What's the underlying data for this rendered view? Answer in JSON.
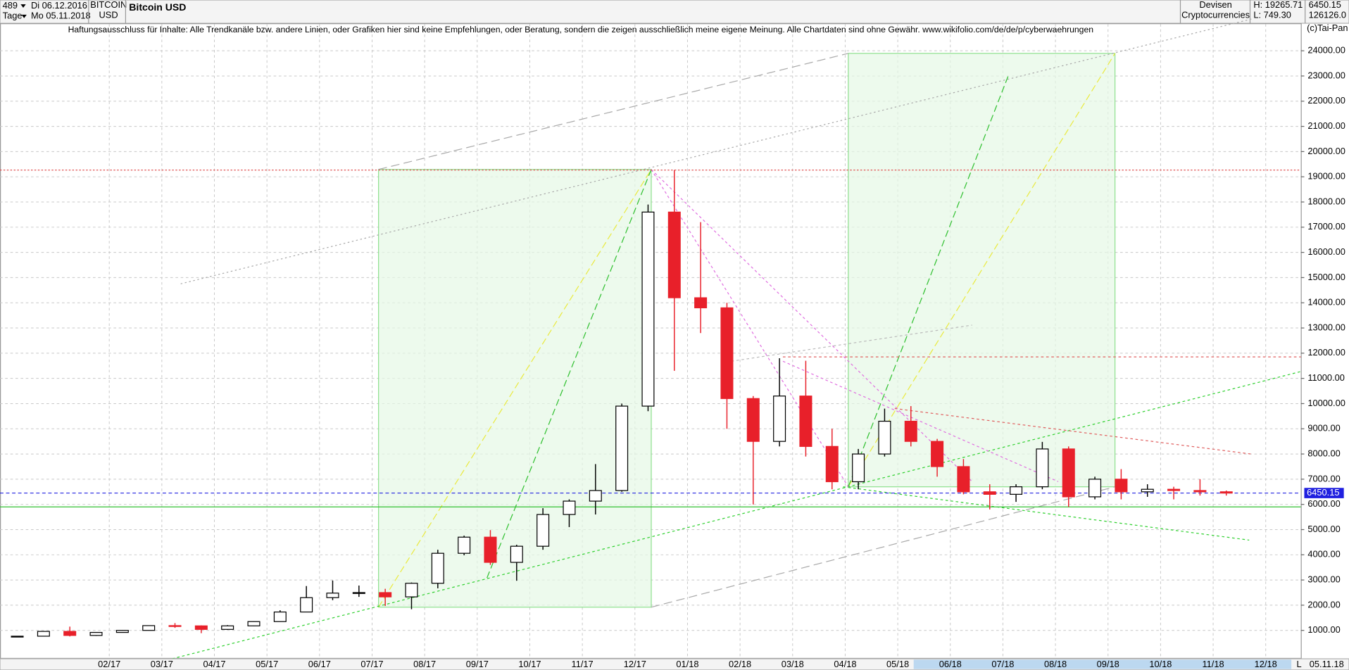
{
  "header": {
    "count": "489",
    "count_unit": "Tage",
    "start_date": "Di 06.12.2016",
    "end_date": "Mo 05.11.2018",
    "symbol": "BITCOIN",
    "currency": "USD",
    "name": "Bitcoin USD",
    "group": "Devisen",
    "subgroup": "Cryptocurrencies",
    "high": "H: 19265.71",
    "low": "L: 749.30",
    "last": "6450.15",
    "volume": "126126.0",
    "copyright": "(c)Tai-Pan",
    "disclaimer": "Haftungsausschluss für Inhalte: Alle Trendkanäle bzw. andere Linien, oder Grafiken hier sind keine Empfehlungen, oder Beratung, sondern die zeigen ausschließlich meine eigene Meinung. Alle Chartdaten sind ohne Gewähr.  www.wikifolio.com/de/de/p/cyberwaehrungen",
    "scale_mode": "L",
    "cursor_date": "05.11.18"
  },
  "chart_data": {
    "type": "candlestick",
    "categories": [
      null,
      null,
      null,
      null,
      "02/17",
      null,
      "03/17",
      null,
      "04/17",
      null,
      "05/17",
      null,
      "06/17",
      null,
      "07/17",
      null,
      "08/17",
      null,
      "09/17",
      null,
      "10/17",
      null,
      "11/17",
      null,
      "12/17",
      null,
      "01/18",
      null,
      "02/18",
      null,
      "03/18",
      null,
      "04/18",
      null,
      "05/18",
      null,
      "06/18",
      null,
      "07/18",
      null,
      "08/18",
      null,
      "09/18",
      null,
      "10/18",
      null,
      "11/18",
      null,
      "12/18"
    ],
    "open": [
      750,
      770,
      960,
      800,
      920,
      1000,
      1190,
      1180,
      1040,
      1180,
      1350,
      1730,
      2300,
      2480,
      2500,
      2330,
      2870,
      4060,
      4700,
      3700,
      4340,
      5600,
      6130,
      6550,
      9900,
      17600,
      14200,
      13800,
      10200,
      8500,
      10300,
      8300,
      6900,
      8000,
      9300,
      8500,
      7500,
      6500,
      6400,
      6700,
      8200,
      6300,
      7000,
      6500,
      6600,
      6550,
      6500,
      null,
      null
    ],
    "high": [
      780,
      970,
      1150,
      930,
      1010,
      1200,
      1290,
      1200,
      1210,
      1360,
      1800,
      2760,
      2980,
      2780,
      2650,
      2900,
      4200,
      4760,
      4980,
      4400,
      5850,
      6200,
      7600,
      10000,
      17900,
      19266,
      17200,
      14000,
      10300,
      11800,
      11700,
      9000,
      8200,
      9800,
      9900,
      8600,
      7800,
      6800,
      6800,
      8480,
      8300,
      7100,
      7400,
      6800,
      6700,
      7000,
      6550,
      null,
      null
    ],
    "low": [
      740,
      760,
      760,
      780,
      910,
      990,
      1100,
      890,
      1020,
      1170,
      1340,
      1720,
      2200,
      2330,
      1970,
      1840,
      2670,
      3980,
      3600,
      2970,
      4200,
      5100,
      5600,
      6500,
      9700,
      11300,
      12800,
      9000,
      6000,
      8300,
      7900,
      6600,
      6600,
      7900,
      8300,
      7100,
      6400,
      5800,
      6100,
      6600,
      5900,
      6200,
      6200,
      6300,
      6200,
      6350,
      6350,
      null,
      null
    ],
    "close": [
      770,
      960,
      800,
      920,
      1000,
      1190,
      1180,
      1040,
      1180,
      1350,
      1730,
      2300,
      2480,
      2500,
      2330,
      2870,
      4060,
      4700,
      3700,
      4340,
      5600,
      6130,
      6550,
      9900,
      17600,
      14200,
      13800,
      10200,
      8500,
      10300,
      8300,
      6900,
      8000,
      9300,
      8500,
      7500,
      6500,
      6400,
      6700,
      8200,
      6300,
      7000,
      6500,
      6600,
      6550,
      6500,
      6450,
      null,
      null
    ],
    "up_color": "#000000",
    "down_color": "#e8202a",
    "ylim": [
      0,
      25000
    ],
    "yticks": [
      {
        "value": 1000,
        "label": "1000.00"
      },
      {
        "value": 2000,
        "label": "2000.00"
      },
      {
        "value": 3000,
        "label": "3000.00"
      },
      {
        "value": 4000,
        "label": "4000.00"
      },
      {
        "value": 5000,
        "label": "5000.00"
      },
      {
        "value": 6000,
        "label": "6000.00"
      },
      {
        "value": 7000,
        "label": "7000.00"
      },
      {
        "value": 8000,
        "label": "8000.00"
      },
      {
        "value": 9000,
        "label": "9000.00"
      },
      {
        "value": 10000,
        "label": "10000.00"
      },
      {
        "value": 11000,
        "label": "11000.00"
      },
      {
        "value": 12000,
        "label": "12000.00"
      },
      {
        "value": 13000,
        "label": "13000.00"
      },
      {
        "value": 14000,
        "label": "14000.00"
      },
      {
        "value": 15000,
        "label": "15000.00"
      },
      {
        "value": 16000,
        "label": "16000.00"
      },
      {
        "value": 17000,
        "label": "17000.00"
      },
      {
        "value": 18000,
        "label": "18000.00"
      },
      {
        "value": 19000,
        "label": "19000.00"
      },
      {
        "value": 20000,
        "label": "20000.00"
      },
      {
        "value": 21000,
        "label": "21000.00"
      },
      {
        "value": 22000,
        "label": "22000.00"
      },
      {
        "value": 23000,
        "label": "23000.00"
      },
      {
        "value": 24000,
        "label": "24000.00"
      }
    ],
    "grid": true,
    "last_price": 6450.15,
    "last_price_color": "#2020e0",
    "peak_line": 19266,
    "peak_line_color": "#e05050",
    "support_line": 5900,
    "support_line_color": "#30c030"
  }
}
